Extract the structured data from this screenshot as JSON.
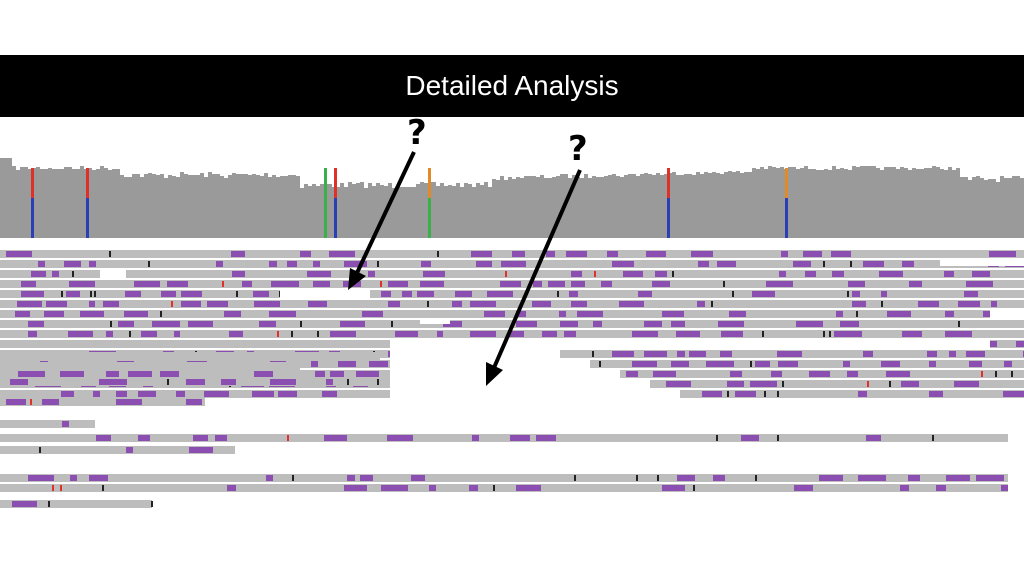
{
  "slide": {
    "title": "Detailed Analysis"
  },
  "annotations": [
    {
      "text": "?"
    },
    {
      "text": "?"
    }
  ],
  "colors": {
    "title_bar": "#000000",
    "coverage": "#9a9a9a",
    "read": "#bdbdbd",
    "mismatch": "#8a4fb0",
    "allele_red": "#e0302a",
    "allele_blue": "#2a3fb5",
    "allele_green": "#3bb04a",
    "allele_orange": "#e08a2a"
  }
}
